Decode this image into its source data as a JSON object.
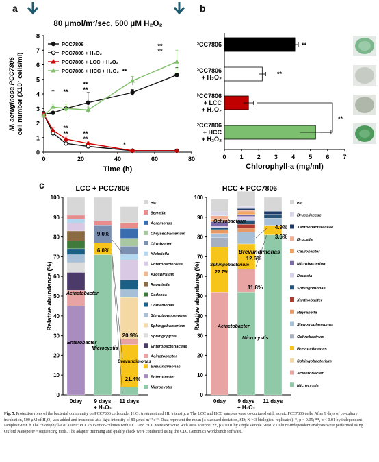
{
  "panel_a": {
    "letter": "a",
    "condition": "80 μmol/m²/sec, 500 μM H₂O₂",
    "ylabel_line1": "M. aeruginosa PCC7806",
    "ylabel_line2": "cell number (X10⁷ cells/ml)",
    "xlabel": "Time (h)",
    "legend": [
      "PCC7806",
      "PCC7806 + H₂O₂",
      "PCC7806 + LCC + H₂O₂",
      "PCC7806 + HCC + H₂O₂"
    ],
    "sig_marks": {
      "star": "*",
      "double": "**"
    }
  },
  "panel_b": {
    "letter": "b",
    "xlabel": "Chlorophyll-a (mg/ml)",
    "categories": [
      [
        "PCC7806"
      ],
      [
        "PCC7806",
        "+ H₂O₂"
      ],
      [
        "PCC7806",
        "+ LCC",
        "+ H₂O₂"
      ],
      [
        "PCC7806",
        "+ HCC",
        "+ H₂O₂"
      ]
    ],
    "sig_marks": {
      "double": "**"
    }
  },
  "panel_c": {
    "letter": "c",
    "ylabel": "Relative abundance (%)",
    "xticks": [
      "0day",
      "9 days",
      "+ H₂O₂",
      "11 days"
    ],
    "lcc_title": "LCC + PCC7806",
    "hcc_title": "HCC + PCC7806",
    "lcc_labels": {
      "acinetobacter": "Acinetobacter",
      "enterobacter": "Enterobacter",
      "microcystis": "Microcystis",
      "brevundimonas": "Brevundimonas"
    },
    "hcc_labels": {
      "ochrobactrum": "Ochrobactrum",
      "sphingobacterium": "Sphingobacterium",
      "brevundimonas": "Brevundimonas",
      "acinetobacter": "Acinetobacter",
      "microcystis": "Microcystis"
    }
  },
  "chart_data": [
    {
      "type": "line",
      "xlabel": "Time (h)",
      "ylabel": "M. aeruginosa PCC7806 cell number (X10⁷ cells/ml)",
      "xlim": [
        0,
        80
      ],
      "ylim": [
        0,
        8
      ],
      "xticks": [
        0,
        20,
        40,
        60,
        80
      ],
      "yticks": [
        0,
        1,
        2,
        3,
        4,
        5,
        6,
        7,
        8
      ],
      "legend_position": "top-left",
      "series": [
        {
          "name": "PCC7806",
          "color": "#111111",
          "marker": "circle-filled",
          "x": [
            0,
            5,
            12,
            24,
            48,
            72
          ],
          "y": [
            2.6,
            2.7,
            3.0,
            3.4,
            4.1,
            5.3
          ],
          "err": [
            0.2,
            1.5,
            0.5,
            0.7,
            0.2,
            0.5
          ]
        },
        {
          "name": "PCC7806 + H₂O₂",
          "color": "#111111",
          "marker": "circle-open",
          "x": [
            0,
            5,
            12,
            24,
            48,
            72
          ],
          "y": [
            2.6,
            1.3,
            0.6,
            0.4,
            0.1,
            0.1
          ],
          "err": [
            0.1,
            0.2,
            0.1,
            0.1,
            0.05,
            0.05
          ]
        },
        {
          "name": "PCC7806 + LCC + H₂O₂",
          "color": "#cc0000",
          "marker": "triangle-filled",
          "x": [
            0,
            5,
            12,
            24,
            48,
            72
          ],
          "y": [
            2.6,
            1.5,
            0.9,
            0.6,
            0.1,
            0.1
          ],
          "err": [
            0.1,
            0.2,
            0.2,
            0.1,
            0.05,
            0.05
          ]
        },
        {
          "name": "PCC7806 + HCC + H₂O₂",
          "color": "#7fbf6a",
          "marker": "triangle-filled",
          "x": [
            0,
            5,
            12,
            24,
            48,
            72
          ],
          "y": [
            2.5,
            3.1,
            3.0,
            2.9,
            4.9,
            6.2
          ],
          "err": [
            0.1,
            0.2,
            0.3,
            0.2,
            0.3,
            0.8
          ]
        }
      ]
    },
    {
      "type": "bar",
      "orientation": "horizontal",
      "xlabel": "Chlorophyll-a (mg/ml)",
      "xlim": [
        0,
        7
      ],
      "xticks": [
        0,
        1,
        2,
        3,
        4,
        5,
        6,
        7
      ],
      "categories": [
        "PCC7806",
        "PCC7806 + H₂O₂",
        "PCC7806 + LCC + H₂O₂",
        "PCC7806 + HCC + H₂O₂"
      ],
      "values": [
        4.1,
        2.2,
        1.4,
        5.3
      ],
      "errors": [
        0.2,
        0.2,
        0.3,
        0.9
      ],
      "colors": [
        "#000000",
        "#ffffff",
        "#c00000",
        "#7cbf6f"
      ]
    },
    {
      "type": "bar",
      "stacked": true,
      "title": "LCC + PCC7806",
      "ylabel": "Relative abundance (%)",
      "ylim": [
        0,
        100
      ],
      "yticks": [
        0,
        10,
        20,
        30,
        40,
        50,
        60,
        70,
        80,
        90,
        100
      ],
      "categories": [
        "0day",
        "9 days + H₂O₂",
        "11 days"
      ],
      "series": [
        {
          "name": "Microcystis",
          "values": [
            0,
            71,
            4
          ]
        },
        {
          "name": "Enterobacter",
          "values": [
            45,
            0,
            0
          ]
        },
        {
          "name": "Brevundimonas",
          "values": [
            0,
            6,
            21.4
          ]
        },
        {
          "name": "Acinetobacter",
          "values": [
            8,
            0,
            3
          ]
        },
        {
          "name": "Enterobacteriaceae",
          "values": [
            9,
            0,
            0
          ]
        },
        {
          "name": "Sphingopyxis",
          "values": [
            5,
            0,
            0
          ]
        },
        {
          "name": "Sphingobacterium",
          "values": [
            0,
            0,
            20.9
          ]
        },
        {
          "name": "Stenotrophomonas",
          "values": [
            4,
            0,
            4
          ]
        },
        {
          "name": "Comamonas",
          "values": [
            3,
            0,
            5
          ]
        },
        {
          "name": "Cedecea",
          "values": [
            4,
            0,
            0
          ]
        },
        {
          "name": "Raoultella",
          "values": [
            5,
            0,
            0
          ]
        },
        {
          "name": "Azospirillum",
          "values": [
            0,
            0,
            0
          ]
        },
        {
          "name": "Enterobacterales",
          "values": [
            4,
            0,
            10
          ]
        },
        {
          "name": "Klebsiella",
          "values": [
            2,
            0,
            3
          ]
        },
        {
          "name": "Citrobacter",
          "values": [
            0,
            9,
            4
          ]
        },
        {
          "name": "Chryseobacterium",
          "values": [
            0,
            0,
            4
          ]
        },
        {
          "name": "Aeromonas",
          "values": [
            0,
            0,
            5
          ]
        },
        {
          "name": "Serratia",
          "values": [
            2,
            2,
            3
          ]
        },
        {
          "name": "etc",
          "values": [
            9,
            12,
            8
          ]
        }
      ],
      "annotations": [
        "9.0%",
        "6.0%",
        "20.9%",
        "21.4%"
      ]
    },
    {
      "type": "bar",
      "stacked": true,
      "title": "HCC + PCC7806",
      "ylabel": "Relative abundance (%)",
      "ylim": [
        0,
        100
      ],
      "yticks": [
        0,
        10,
        20,
        30,
        40,
        50,
        60,
        70,
        80,
        90,
        100
      ],
      "categories": [
        "0day",
        "9 days + H₂O₂",
        "11 days"
      ],
      "series": [
        {
          "name": "Microcystis",
          "values": [
            0,
            52,
            81
          ]
        },
        {
          "name": "Acinetobacter",
          "values": [
            52,
            11.8,
            0
          ]
        },
        {
          "name": "Sphingobacterium",
          "values": [
            0,
            0,
            0
          ]
        },
        {
          "name": "Brevundimonas",
          "values": [
            22.7,
            12.6,
            4.9
          ]
        },
        {
          "name": "Ochrobactrum",
          "values": [
            5,
            0,
            0
          ]
        },
        {
          "name": "Stenotrophomonas",
          "values": [
            2,
            6,
            3.6
          ]
        },
        {
          "name": "Reyranella",
          "values": [
            2,
            2,
            0
          ]
        },
        {
          "name": "Xanthobacter",
          "values": [
            0,
            2,
            0
          ]
        },
        {
          "name": "Sphingomonas",
          "values": [
            1,
            2,
            2
          ]
        },
        {
          "name": "Devosia",
          "values": [
            1,
            2,
            0
          ]
        },
        {
          "name": "Microbacterium",
          "values": [
            2,
            1,
            0
          ]
        },
        {
          "name": "Caulobacter",
          "values": [
            1,
            1,
            0
          ]
        },
        {
          "name": "Brucella",
          "values": [
            2,
            1,
            0
          ]
        },
        {
          "name": "Xanthobacteraceae",
          "values": [
            0,
            1,
            1.5
          ]
        },
        {
          "name": "Brucellaceae",
          "values": [
            2,
            1,
            0
          ]
        },
        {
          "name": "etc",
          "values": [
            6.3,
            7.6,
            7
          ]
        }
      ],
      "annotations": [
        "22.7%",
        "12.6%",
        "11.8%",
        "4.9%",
        "3.6%"
      ]
    }
  ],
  "caption": {
    "fig_label": "Fig. 5.",
    "text": "Protective roles of the bacterial community on PCC7806 cells under H₂O₂ treatment and HL intensity. a The LCC and HCC samples were co-cultured with axenic PCC7806 cells. After 9 days of co-culture incubation, 500 μM of H₂O₂ was added and incubated at a light intensity of 80 μmol m⁻² s⁻¹. Data represent the mean (± standard deviation, SD; N = 3 biological replicates). *, p < 0.05; **, p < 0.01 by independent samples t-test. b The chlorophyll-a of axenic PCC7806 or co-cultures with LCC and HCC were extracted with 90% acetone. **, p < 0.01 by single sample t-test. c Culture-independent analyses were performed using Oxford Nanopore™ sequencing tools. The adapter trimming and quality check were conducted using the CLC Genomics Workbench software."
  }
}
